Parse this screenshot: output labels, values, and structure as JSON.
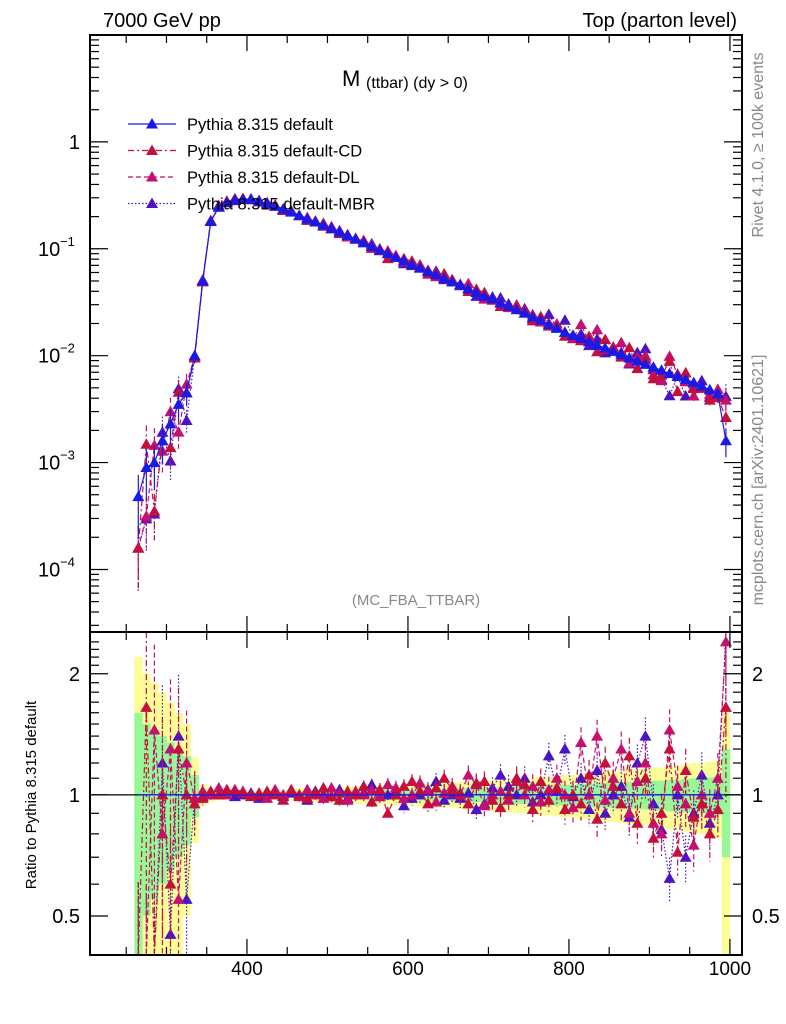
{
  "header": {
    "left": "7000 GeV pp",
    "right": "Top (parton level)"
  },
  "side_labels": {
    "rivet": "Rivet 4.1.0, ≥ 100k events",
    "mcplots": "mcplots.cern.ch [arXiv:2401.10621]"
  },
  "chart_data": {
    "type": "scatter",
    "title_main": "M",
    "title_sub": "(ttbar) (dy > 0)",
    "analysis": "(MC_FBA_TTBAR)",
    "ylabel_ratio": "Ratio to Pythia 8.315 default",
    "xlim": [
      205,
      1015
    ],
    "ylim": [
      2.6e-05,
      10
    ],
    "ylim_ratio": [
      0.4,
      2.54
    ],
    "x_ticks": [
      "400",
      "600",
      "800",
      "1000"
    ],
    "y_ticks": [
      {
        "base": "1",
        "exp": ""
      },
      {
        "base": "10",
        "exp": "−1"
      },
      {
        "base": "10",
        "exp": "−2"
      },
      {
        "base": "10",
        "exp": "−3"
      },
      {
        "base": "10",
        "exp": "−4"
      }
    ],
    "ratio_ticks": [
      "2",
      "1",
      "0.5"
    ],
    "legend_position": "top-left",
    "x_start": 265,
    "bin_width": 10,
    "reference": {
      "name": "Pythia 8.315 default",
      "color": "#1a1ae6",
      "values": [
        0.00048,
        0.0009,
        0.001,
        0.0016,
        0.0023,
        0.0035,
        0.0045,
        0.01,
        0.05,
        0.18,
        0.245,
        0.27,
        0.285,
        0.29,
        0.29,
        0.28,
        0.265,
        0.25,
        0.235,
        0.22,
        0.205,
        0.19,
        0.178,
        0.166,
        0.155,
        0.143,
        0.133,
        0.123,
        0.114,
        0.105,
        0.097,
        0.09,
        0.083,
        0.077,
        0.071,
        0.066,
        0.061,
        0.057,
        0.053,
        0.049,
        0.046,
        0.042,
        0.039,
        0.036,
        0.034,
        0.031,
        0.029,
        0.027,
        0.025,
        0.023,
        0.0215,
        0.0195,
        0.018,
        0.0165,
        0.0155,
        0.0145,
        0.0135,
        0.0125,
        0.0118,
        0.011,
        0.0102,
        0.0095,
        0.0089,
        0.0083,
        0.0078,
        0.0073,
        0.0068,
        0.0064,
        0.006,
        0.0056,
        0.0052,
        0.0048,
        0.0044,
        0.0016
      ],
      "rel_uncertainty": [
        0.6,
        0.5,
        0.45,
        0.4,
        0.35,
        0.3,
        0.25,
        0.12,
        0.03,
        0.02,
        0.015,
        0.015,
        0.015,
        0.015,
        0.015,
        0.015,
        0.015,
        0.015,
        0.015,
        0.015,
        0.02,
        0.02,
        0.02,
        0.022,
        0.022,
        0.022,
        0.025,
        0.025,
        0.025,
        0.025,
        0.028,
        0.028,
        0.03,
        0.03,
        0.03,
        0.032,
        0.032,
        0.035,
        0.035,
        0.035,
        0.038,
        0.04,
        0.04,
        0.042,
        0.045,
        0.045,
        0.048,
        0.05,
        0.05,
        0.052,
        0.055,
        0.055,
        0.058,
        0.06,
        0.06,
        0.065,
        0.065,
        0.07,
        0.07,
        0.072,
        0.075,
        0.078,
        0.08,
        0.08,
        0.085,
        0.085,
        0.09,
        0.09,
        0.095,
        0.1,
        0.1,
        0.105,
        0.11,
        0.3
      ]
    },
    "series": [
      {
        "name": "Pythia 8.315 default-CD",
        "color": "#c4103c",
        "dash": "6,3,2,3",
        "ratio": [
          0.33,
          1.65,
          0.35,
          1.0,
          0.6,
          1.3,
          1.0,
          0.95,
          0.98,
          1.02,
          1.0,
          1.03,
          1.02,
          1.01,
          0.99,
          1.0,
          1.02,
          1.0,
          0.97,
          1.03,
          1.0,
          0.98,
          1.01,
          1.04,
          0.99,
          0.97,
          1.02,
          1.0,
          1.05,
          0.96,
          1.03,
          0.9,
          1.0,
          1.05,
          1.08,
          1.02,
          0.95,
          1.04,
          1.1,
          1.03,
          1.01,
          0.95,
          1.07,
          1.08,
          0.97,
          0.93,
          1.0,
          1.1,
          1.06,
          0.92,
          1.08,
          0.97,
          1.04,
          0.92,
          1.0,
          0.95,
          1.12,
          0.87,
          1.2,
          1.05,
          0.95,
          1.25,
          0.85,
          1.1,
          0.78,
          0.9,
          1.3,
          0.72,
          1.15,
          0.88,
          0.95,
          0.8,
          0.92,
          1.65
        ]
      },
      {
        "name": "Pythia 8.315 default-DL",
        "color": "#c4106e",
        "dash": "5,3",
        "ratio": [
          0.33,
          0.35,
          1.45,
          0.8,
          1.3,
          0.55,
          1.2,
          0.98,
          1.02,
          1.0,
          1.04,
          1.0,
          1.03,
          1.02,
          1.0,
          1.01,
          0.98,
          1.03,
          1.0,
          1.02,
          0.99,
          1.03,
          1.0,
          0.98,
          1.04,
          1.01,
          0.97,
          1.02,
          1.0,
          1.03,
          0.99,
          1.06,
          1.04,
          0.98,
          1.0,
          1.07,
          1.02,
          0.96,
          1.01,
          1.05,
          1.0,
          1.12,
          1.06,
          0.94,
          1.0,
          1.02,
          0.97,
          1.08,
          1.0,
          1.05,
          0.96,
          1.03,
          1.1,
          1.0,
          0.93,
          1.35,
          1.0,
          1.4,
          0.97,
          1.1,
          1.3,
          0.9,
          1.08,
          1.2,
          0.85,
          0.8,
          1.45,
          1.05,
          0.95,
          0.75,
          1.0,
          0.9,
          1.1,
          2.4
        ]
      },
      {
        "name": "Pythia 8.315 default-MBR",
        "color": "#4a14c4",
        "dash": "1.5,2",
        "ratio": [
          0.33,
          0.33,
          0.33,
          1.2,
          0.45,
          1.4,
          0.55,
          0.98,
          0.99,
          1.0,
          1.0,
          1.02,
          0.99,
          1.0,
          1.01,
          0.98,
          1.0,
          1.02,
          0.99,
          1.01,
          1.0,
          0.97,
          1.02,
          1.0,
          0.99,
          1.03,
          0.98,
          1.0,
          1.01,
          1.06,
          0.99,
          1.0,
          1.02,
          0.94,
          0.98,
          1.0,
          1.03,
          1.08,
          0.97,
          1.0,
          0.98,
          1.01,
          0.92,
          0.95,
          1.04,
          1.12,
          1.05,
          1.0,
          1.1,
          0.96,
          1.0,
          1.25,
          1.02,
          1.3,
          0.99,
          1.1,
          0.92,
          1.15,
          0.9,
          1.0,
          1.05,
          0.88,
          1.2,
          1.4,
          0.95,
          0.82,
          0.62,
          1.0,
          0.7,
          0.9,
          1.12,
          0.85,
          1.0,
          2.6
        ]
      }
    ],
    "band_colors": {
      "inner": "#98f898",
      "outer": "#fdfd98"
    }
  }
}
